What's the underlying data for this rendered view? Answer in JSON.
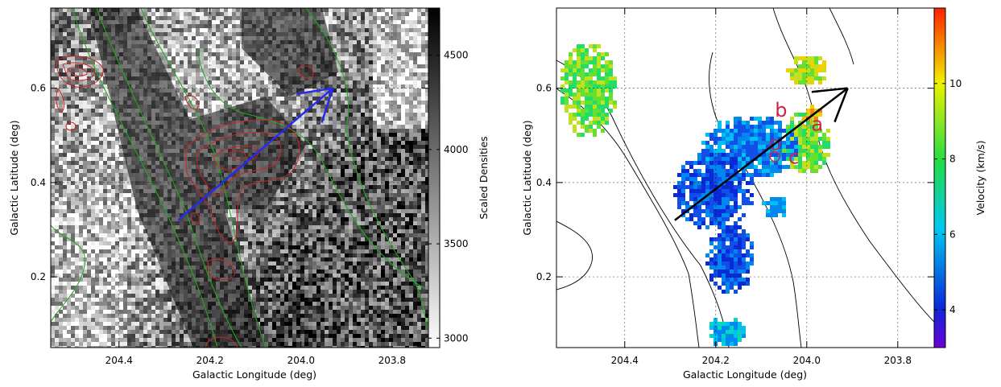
{
  "chart_data": [
    {
      "type": "heatmap",
      "xlabel": "Galactic Longitude (deg)",
      "ylabel": "Galactic Latitude (deg)",
      "xlim": [
        204.55,
        203.72
      ],
      "ylim": [
        0.05,
        0.77
      ],
      "x_ticks": [
        {
          "value": 204.4,
          "label": "204.4"
        },
        {
          "value": 204.2,
          "label": "204.2"
        },
        {
          "value": 204.0,
          "label": "204.0"
        },
        {
          "value": 203.8,
          "label": "203.8"
        }
      ],
      "y_ticks": [
        {
          "value": 0.2,
          "label": "0.2"
        },
        {
          "value": 0.4,
          "label": "0.4"
        },
        {
          "value": 0.6,
          "label": "0.6"
        }
      ],
      "colorbar": {
        "label": "Scaled Densities",
        "range": [
          2950,
          4750
        ],
        "ticks": [
          {
            "value": 3000,
            "label": "3000"
          },
          {
            "value": 3500,
            "label": "3500"
          },
          {
            "value": 4000,
            "label": "4000"
          },
          {
            "value": 4500,
            "label": "4500"
          }
        ],
        "colormap": [
          "#ffffff",
          "#000000"
        ]
      },
      "grid": true,
      "contour_colors": {
        "outer": "#22aa22",
        "inner": "#d22222"
      },
      "arrow": {
        "from": [
          204.27,
          0.32
        ],
        "to": [
          203.93,
          0.6
        ],
        "color": "#2a2aee"
      }
    },
    {
      "type": "heatmap",
      "xlabel": "Galactic Longitude (deg)",
      "ylabel": "Galactic Latitude (deg)",
      "xlim": [
        204.55,
        203.72
      ],
      "ylim": [
        0.05,
        0.77
      ],
      "x_ticks": [
        {
          "value": 204.4,
          "label": "204.4"
        },
        {
          "value": 204.2,
          "label": "204.2"
        },
        {
          "value": 204.0,
          "label": "204.0"
        },
        {
          "value": 203.8,
          "label": "203.8"
        }
      ],
      "y_ticks": [
        {
          "value": 0.2,
          "label": "0.2"
        },
        {
          "value": 0.4,
          "label": "0.4"
        },
        {
          "value": 0.6,
          "label": "0.6"
        }
      ],
      "colorbar": {
        "label": "Velocity (km/s)",
        "range": [
          3,
          12
        ],
        "ticks": [
          {
            "value": 4,
            "label": "4"
          },
          {
            "value": 6,
            "label": "6"
          },
          {
            "value": 8,
            "label": "8"
          },
          {
            "value": 10,
            "label": "10"
          }
        ],
        "colormap": [
          "#6a00d8",
          "#0a2ad8",
          "#00c8f0",
          "#22dd44",
          "#f0f000",
          "#ff2000"
        ]
      },
      "grid": true,
      "annotations": [
        {
          "label": "a",
          "x": 203.99,
          "y": 0.51
        },
        {
          "label": "b",
          "x": 204.07,
          "y": 0.54
        },
        {
          "label": "c",
          "x": 204.04,
          "y": 0.44
        }
      ],
      "circles": [
        {
          "x": 204.0,
          "y": 0.53
        },
        {
          "x": 204.07,
          "y": 0.48
        },
        {
          "x": 204.07,
          "y": 0.455
        }
      ],
      "arrow": {
        "from": [
          204.29,
          0.32
        ],
        "to": [
          203.91,
          0.6
        ],
        "color": "#000000"
      }
    }
  ]
}
